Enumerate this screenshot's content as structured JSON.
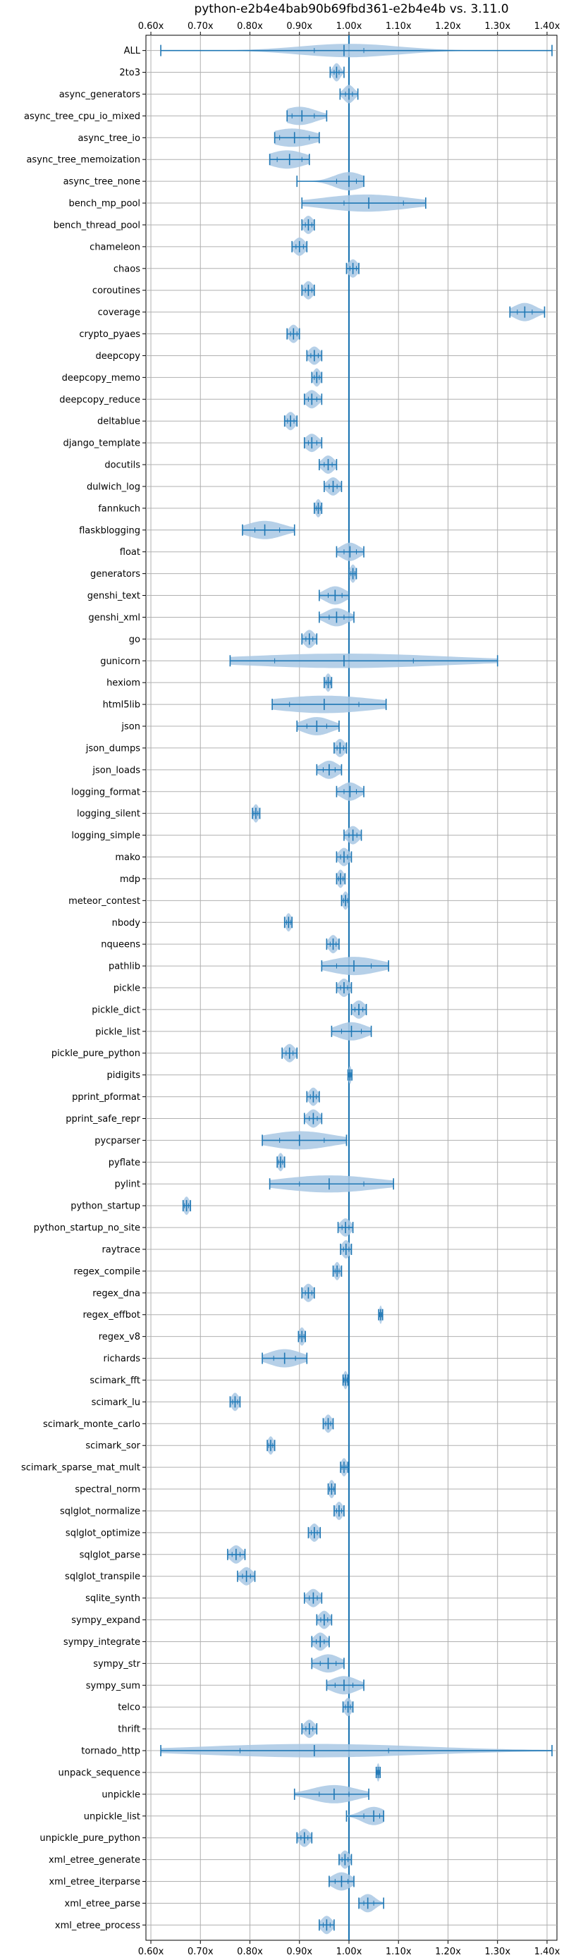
{
  "chart_data": {
    "type": "violin",
    "title": "python-e2b4e4bab90b69fbd361-e2b4e4b vs. 3.11.0",
    "xlabel": "",
    "ylabel": "",
    "xlim": [
      0.59,
      1.42
    ],
    "x_ticks": [
      0.6,
      0.7,
      0.8,
      0.9,
      1.0,
      1.1,
      1.2,
      1.3,
      1.4
    ],
    "x_tick_labels": [
      "0.60x",
      "0.70x",
      "0.80x",
      "0.90x",
      "1.00x",
      "1.10x",
      "1.20x",
      "1.30x",
      "1.40x"
    ],
    "x_ticks_top_and_bottom": true,
    "reference_line": 1.0,
    "grid": true,
    "colors": {
      "violin": "#a9c8e4",
      "whisker": "#1f77b4",
      "reference": "#1f77b4",
      "grid": "#b0b0b0"
    },
    "series": [
      {
        "name": "ALL",
        "min": 0.62,
        "max": 1.41,
        "mean": 0.99,
        "median": 1.0,
        "q1": 0.93,
        "q3": 1.03
      },
      {
        "name": "2to3",
        "min": 0.962,
        "max": 0.99,
        "mean": 0.975,
        "median": 0.975,
        "q1": 0.97,
        "q3": 0.98
      },
      {
        "name": "async_generators",
        "min": 0.982,
        "max": 1.018,
        "mean": 1.0,
        "median": 1.0,
        "q1": 0.993,
        "q3": 1.007
      },
      {
        "name": "async_tree_cpu_io_mixed",
        "min": 0.875,
        "max": 0.955,
        "mean": 0.905,
        "median": 0.9,
        "q1": 0.885,
        "q3": 0.93
      },
      {
        "name": "async_tree_io",
        "min": 0.85,
        "max": 0.94,
        "mean": 0.89,
        "median": 0.885,
        "q1": 0.86,
        "q3": 0.92
      },
      {
        "name": "async_tree_memoization",
        "min": 0.84,
        "max": 0.92,
        "mean": 0.88,
        "median": 0.875,
        "q1": 0.855,
        "q3": 0.905
      },
      {
        "name": "async_tree_none",
        "min": 0.895,
        "max": 1.03,
        "mean": 1.0,
        "median": 1.0,
        "q1": 0.975,
        "q3": 1.015
      },
      {
        "name": "bench_mp_pool",
        "min": 0.905,
        "max": 1.155,
        "mean": 1.04,
        "median": 1.035,
        "q1": 0.99,
        "q3": 1.11
      },
      {
        "name": "bench_thread_pool",
        "min": 0.905,
        "max": 0.93,
        "mean": 0.918,
        "median": 0.918,
        "q1": 0.912,
        "q3": 0.925
      },
      {
        "name": "chameleon",
        "min": 0.885,
        "max": 0.915,
        "mean": 0.9,
        "median": 0.9,
        "q1": 0.893,
        "q3": 0.908
      },
      {
        "name": "chaos",
        "min": 0.995,
        "max": 1.02,
        "mean": 1.008,
        "median": 1.008,
        "q1": 1.002,
        "q3": 1.015
      },
      {
        "name": "coroutines",
        "min": 0.905,
        "max": 0.93,
        "mean": 0.918,
        "median": 0.918,
        "q1": 0.912,
        "q3": 0.925
      },
      {
        "name": "coverage",
        "min": 1.325,
        "max": 1.395,
        "mean": 1.355,
        "median": 1.355,
        "q1": 1.34,
        "q3": 1.37
      },
      {
        "name": "crypto_pyaes",
        "min": 0.875,
        "max": 0.9,
        "mean": 0.888,
        "median": 0.888,
        "q1": 0.882,
        "q3": 0.895
      },
      {
        "name": "deepcopy",
        "min": 0.915,
        "max": 0.945,
        "mean": 0.93,
        "median": 0.93,
        "q1": 0.923,
        "q3": 0.938
      },
      {
        "name": "deepcopy_memo",
        "min": 0.925,
        "max": 0.945,
        "mean": 0.935,
        "median": 0.935,
        "q1": 0.93,
        "q3": 0.94
      },
      {
        "name": "deepcopy_reduce",
        "min": 0.91,
        "max": 0.945,
        "mean": 0.925,
        "median": 0.925,
        "q1": 0.918,
        "q3": 0.935
      },
      {
        "name": "deltablue",
        "min": 0.87,
        "max": 0.895,
        "mean": 0.882,
        "median": 0.882,
        "q1": 0.876,
        "q3": 0.889
      },
      {
        "name": "django_template",
        "min": 0.91,
        "max": 0.945,
        "mean": 0.925,
        "median": 0.925,
        "q1": 0.918,
        "q3": 0.935
      },
      {
        "name": "docutils",
        "min": 0.94,
        "max": 0.975,
        "mean": 0.958,
        "median": 0.958,
        "q1": 0.95,
        "q3": 0.966
      },
      {
        "name": "dulwich_log",
        "min": 0.95,
        "max": 0.985,
        "mean": 0.968,
        "median": 0.968,
        "q1": 0.96,
        "q3": 0.976
      },
      {
        "name": "fannkuch",
        "min": 0.93,
        "max": 0.945,
        "mean": 0.938,
        "median": 0.938,
        "q1": 0.934,
        "q3": 0.942
      },
      {
        "name": "flaskblogging",
        "min": 0.785,
        "max": 0.89,
        "mean": 0.83,
        "median": 0.83,
        "q1": 0.81,
        "q3": 0.86
      },
      {
        "name": "float",
        "min": 0.975,
        "max": 1.03,
        "mean": 1.002,
        "median": 1.002,
        "q1": 0.99,
        "q3": 1.015
      },
      {
        "name": "generators",
        "min": 1.0,
        "max": 1.015,
        "mean": 1.008,
        "median": 1.008,
        "q1": 1.004,
        "q3": 1.012
      },
      {
        "name": "genshi_text",
        "min": 0.94,
        "max": 1.0,
        "mean": 0.972,
        "median": 0.972,
        "q1": 0.958,
        "q3": 0.986
      },
      {
        "name": "genshi_xml",
        "min": 0.94,
        "max": 1.01,
        "mean": 0.975,
        "median": 0.975,
        "q1": 0.96,
        "q3": 0.99
      },
      {
        "name": "go",
        "min": 0.905,
        "max": 0.935,
        "mean": 0.92,
        "median": 0.92,
        "q1": 0.913,
        "q3": 0.927
      },
      {
        "name": "gunicorn",
        "min": 0.76,
        "max": 1.3,
        "mean": 0.99,
        "median": 0.99,
        "q1": 0.85,
        "q3": 1.13
      },
      {
        "name": "hexiom",
        "min": 0.95,
        "max": 0.965,
        "mean": 0.958,
        "median": 0.958,
        "q1": 0.954,
        "q3": 0.962
      },
      {
        "name": "html5lib",
        "min": 0.845,
        "max": 1.075,
        "mean": 0.95,
        "median": 0.95,
        "q1": 0.88,
        "q3": 1.02
      },
      {
        "name": "json",
        "min": 0.895,
        "max": 0.98,
        "mean": 0.935,
        "median": 0.935,
        "q1": 0.915,
        "q3": 0.955
      },
      {
        "name": "json_dumps",
        "min": 0.97,
        "max": 0.995,
        "mean": 0.982,
        "median": 0.982,
        "q1": 0.976,
        "q3": 0.989
      },
      {
        "name": "json_loads",
        "min": 0.935,
        "max": 0.985,
        "mean": 0.96,
        "median": 0.96,
        "q1": 0.948,
        "q3": 0.972
      },
      {
        "name": "logging_format",
        "min": 0.975,
        "max": 1.03,
        "mean": 1.002,
        "median": 1.002,
        "q1": 0.99,
        "q3": 1.015
      },
      {
        "name": "logging_silent",
        "min": 0.805,
        "max": 0.82,
        "mean": 0.812,
        "median": 0.812,
        "q1": 0.808,
        "q3": 0.816
      },
      {
        "name": "logging_simple",
        "min": 0.99,
        "max": 1.025,
        "mean": 1.008,
        "median": 1.008,
        "q1": 1.0,
        "q3": 1.016
      },
      {
        "name": "mako",
        "min": 0.975,
        "max": 1.005,
        "mean": 0.99,
        "median": 0.99,
        "q1": 0.983,
        "q3": 0.997
      },
      {
        "name": "mdp",
        "min": 0.975,
        "max": 0.992,
        "mean": 0.983,
        "median": 0.983,
        "q1": 0.979,
        "q3": 0.988
      },
      {
        "name": "meteor_contest",
        "min": 0.985,
        "max": 1.0,
        "mean": 0.993,
        "median": 0.993,
        "q1": 0.989,
        "q3": 0.997
      },
      {
        "name": "nbody",
        "min": 0.87,
        "max": 0.885,
        "mean": 0.878,
        "median": 0.878,
        "q1": 0.874,
        "q3": 0.882
      },
      {
        "name": "nqueens",
        "min": 0.955,
        "max": 0.98,
        "mean": 0.968,
        "median": 0.968,
        "q1": 0.962,
        "q3": 0.974
      },
      {
        "name": "pathlib",
        "min": 0.945,
        "max": 1.08,
        "mean": 1.01,
        "median": 1.01,
        "q1": 0.975,
        "q3": 1.045
      },
      {
        "name": "pickle",
        "min": 0.975,
        "max": 1.005,
        "mean": 0.99,
        "median": 0.99,
        "q1": 0.983,
        "q3": 0.997
      },
      {
        "name": "pickle_dict",
        "min": 1.005,
        "max": 1.035,
        "mean": 1.02,
        "median": 1.02,
        "q1": 1.012,
        "q3": 1.028
      },
      {
        "name": "pickle_list",
        "min": 0.965,
        "max": 1.045,
        "mean": 1.005,
        "median": 1.005,
        "q1": 0.985,
        "q3": 1.025
      },
      {
        "name": "pickle_pure_python",
        "min": 0.865,
        "max": 0.895,
        "mean": 0.88,
        "median": 0.88,
        "q1": 0.873,
        "q3": 0.887
      },
      {
        "name": "pidigits",
        "min": 0.998,
        "max": 1.006,
        "mean": 1.002,
        "median": 1.002,
        "q1": 1.0,
        "q3": 1.004
      },
      {
        "name": "pprint_pformat",
        "min": 0.915,
        "max": 0.94,
        "mean": 0.928,
        "median": 0.928,
        "q1": 0.922,
        "q3": 0.934
      },
      {
        "name": "pprint_safe_repr",
        "min": 0.91,
        "max": 0.945,
        "mean": 0.928,
        "median": 0.928,
        "q1": 0.92,
        "q3": 0.936
      },
      {
        "name": "pycparser",
        "min": 0.825,
        "max": 0.995,
        "mean": 0.9,
        "median": 0.9,
        "q1": 0.86,
        "q3": 0.95
      },
      {
        "name": "pyflate",
        "min": 0.855,
        "max": 0.87,
        "mean": 0.862,
        "median": 0.862,
        "q1": 0.858,
        "q3": 0.866
      },
      {
        "name": "pylint",
        "min": 0.84,
        "max": 1.09,
        "mean": 0.96,
        "median": 0.96,
        "q1": 0.9,
        "q3": 1.03
      },
      {
        "name": "python_startup",
        "min": 0.665,
        "max": 0.68,
        "mean": 0.672,
        "median": 0.672,
        "q1": 0.668,
        "q3": 0.676
      },
      {
        "name": "python_startup_no_site",
        "min": 0.978,
        "max": 1.008,
        "mean": 0.993,
        "median": 0.993,
        "q1": 0.986,
        "q3": 1.0
      },
      {
        "name": "raytrace",
        "min": 0.983,
        "max": 1.005,
        "mean": 0.994,
        "median": 0.994,
        "q1": 0.989,
        "q3": 1.0
      },
      {
        "name": "regex_compile",
        "min": 0.968,
        "max": 0.985,
        "mean": 0.976,
        "median": 0.976,
        "q1": 0.972,
        "q3": 0.98
      },
      {
        "name": "regex_dna",
        "min": 0.905,
        "max": 0.93,
        "mean": 0.918,
        "median": 0.918,
        "q1": 0.912,
        "q3": 0.925
      },
      {
        "name": "regex_effbot",
        "min": 1.06,
        "max": 1.068,
        "mean": 1.064,
        "median": 1.064,
        "q1": 1.062,
        "q3": 1.066
      },
      {
        "name": "regex_v8",
        "min": 0.898,
        "max": 0.912,
        "mean": 0.905,
        "median": 0.905,
        "q1": 0.901,
        "q3": 0.909
      },
      {
        "name": "richards",
        "min": 0.825,
        "max": 0.915,
        "mean": 0.87,
        "median": 0.87,
        "q1": 0.848,
        "q3": 0.892
      },
      {
        "name": "scimark_fft",
        "min": 0.988,
        "max": 0.998,
        "mean": 0.993,
        "median": 0.993,
        "q1": 0.99,
        "q3": 0.996
      },
      {
        "name": "scimark_lu",
        "min": 0.76,
        "max": 0.78,
        "mean": 0.77,
        "median": 0.77,
        "q1": 0.765,
        "q3": 0.775
      },
      {
        "name": "scimark_monte_carlo",
        "min": 0.948,
        "max": 0.968,
        "mean": 0.958,
        "median": 0.958,
        "q1": 0.953,
        "q3": 0.963
      },
      {
        "name": "scimark_sor",
        "min": 0.835,
        "max": 0.85,
        "mean": 0.842,
        "median": 0.842,
        "q1": 0.838,
        "q3": 0.846
      },
      {
        "name": "scimark_sparse_mat_mult",
        "min": 0.983,
        "max": 0.998,
        "mean": 0.99,
        "median": 0.99,
        "q1": 0.986,
        "q3": 0.994
      },
      {
        "name": "spectral_norm",
        "min": 0.958,
        "max": 0.972,
        "mean": 0.965,
        "median": 0.965,
        "q1": 0.961,
        "q3": 0.969
      },
      {
        "name": "sqlglot_normalize",
        "min": 0.97,
        "max": 0.99,
        "mean": 0.98,
        "median": 0.98,
        "q1": 0.975,
        "q3": 0.985
      },
      {
        "name": "sqlglot_optimize",
        "min": 0.918,
        "max": 0.942,
        "mean": 0.93,
        "median": 0.93,
        "q1": 0.924,
        "q3": 0.936
      },
      {
        "name": "sqlglot_parse",
        "min": 0.755,
        "max": 0.79,
        "mean": 0.772,
        "median": 0.772,
        "q1": 0.764,
        "q3": 0.78
      },
      {
        "name": "sqlglot_transpile",
        "min": 0.775,
        "max": 0.81,
        "mean": 0.793,
        "median": 0.793,
        "q1": 0.785,
        "q3": 0.801
      },
      {
        "name": "sqlite_synth",
        "min": 0.91,
        "max": 0.945,
        "mean": 0.928,
        "median": 0.928,
        "q1": 0.92,
        "q3": 0.936
      },
      {
        "name": "sympy_expand",
        "min": 0.935,
        "max": 0.965,
        "mean": 0.95,
        "median": 0.95,
        "q1": 0.943,
        "q3": 0.957
      },
      {
        "name": "sympy_integrate",
        "min": 0.925,
        "max": 0.96,
        "mean": 0.942,
        "median": 0.942,
        "q1": 0.934,
        "q3": 0.95
      },
      {
        "name": "sympy_str",
        "min": 0.925,
        "max": 0.99,
        "mean": 0.958,
        "median": 0.958,
        "q1": 0.942,
        "q3": 0.974
      },
      {
        "name": "sympy_sum",
        "min": 0.955,
        "max": 1.03,
        "mean": 0.99,
        "median": 0.99,
        "q1": 0.972,
        "q3": 1.008
      },
      {
        "name": "telco",
        "min": 0.988,
        "max": 1.008,
        "mean": 0.998,
        "median": 0.998,
        "q1": 0.993,
        "q3": 1.003
      },
      {
        "name": "thrift",
        "min": 0.905,
        "max": 0.935,
        "mean": 0.92,
        "median": 0.92,
        "q1": 0.913,
        "q3": 0.927
      },
      {
        "name": "tornado_http",
        "min": 0.62,
        "max": 1.41,
        "mean": 0.93,
        "median": 0.93,
        "q1": 0.78,
        "q3": 1.08
      },
      {
        "name": "unpack_sequence",
        "min": 1.055,
        "max": 1.063,
        "mean": 1.059,
        "median": 1.059,
        "q1": 1.057,
        "q3": 1.061
      },
      {
        "name": "unpickle",
        "min": 0.89,
        "max": 1.04,
        "mean": 0.97,
        "median": 0.97,
        "q1": 0.94,
        "q3": 1.0
      },
      {
        "name": "unpickle_list",
        "min": 0.995,
        "max": 1.07,
        "mean": 1.05,
        "median": 1.05,
        "q1": 1.03,
        "q3": 1.062
      },
      {
        "name": "unpickle_pure_python",
        "min": 0.895,
        "max": 0.925,
        "mean": 0.91,
        "median": 0.91,
        "q1": 0.903,
        "q3": 0.917
      },
      {
        "name": "xml_etree_generate",
        "min": 0.98,
        "max": 1.005,
        "mean": 0.992,
        "median": 0.992,
        "q1": 0.986,
        "q3": 0.998
      },
      {
        "name": "xml_etree_iterparse",
        "min": 0.96,
        "max": 1.01,
        "mean": 0.985,
        "median": 0.985,
        "q1": 0.972,
        "q3": 0.998
      },
      {
        "name": "xml_etree_parse",
        "min": 1.02,
        "max": 1.07,
        "mean": 1.038,
        "median": 1.038,
        "q1": 1.03,
        "q3": 1.05
      },
      {
        "name": "xml_etree_process",
        "min": 0.94,
        "max": 0.97,
        "mean": 0.955,
        "median": 0.955,
        "q1": 0.948,
        "q3": 0.962
      }
    ]
  }
}
